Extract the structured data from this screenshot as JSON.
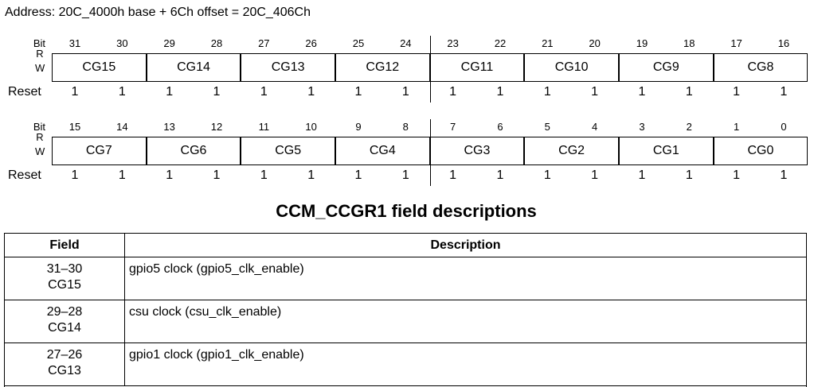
{
  "address": "Address: 20C_4000h base + 6Ch offset = 20C_406Ch",
  "registers": [
    {
      "bit_label": "Bit",
      "rw_labels": [
        "R",
        "W"
      ],
      "reset_label": "Reset",
      "bits": [
        31,
        30,
        29,
        28,
        27,
        26,
        25,
        24,
        23,
        22,
        21,
        20,
        19,
        18,
        17,
        16
      ],
      "fields": [
        "CG15",
        "CG14",
        "CG13",
        "CG12",
        "CG11",
        "CG10",
        "CG9",
        "CG8"
      ],
      "resets": [
        1,
        1,
        1,
        1,
        1,
        1,
        1,
        1,
        1,
        1,
        1,
        1,
        1,
        1,
        1,
        1
      ]
    },
    {
      "bit_label": "Bit",
      "rw_labels": [
        "R",
        "W"
      ],
      "reset_label": "Reset",
      "bits": [
        15,
        14,
        13,
        12,
        11,
        10,
        9,
        8,
        7,
        6,
        5,
        4,
        3,
        2,
        1,
        0
      ],
      "fields": [
        "CG7",
        "CG6",
        "CG5",
        "CG4",
        "CG3",
        "CG2",
        "CG1",
        "CG0"
      ],
      "resets": [
        1,
        1,
        1,
        1,
        1,
        1,
        1,
        1,
        1,
        1,
        1,
        1,
        1,
        1,
        1,
        1
      ]
    }
  ],
  "table_title": "CCM_CCGR1 field descriptions",
  "table": {
    "headers": [
      "Field",
      "Description"
    ],
    "rows": [
      {
        "bits": "31–30",
        "name": "CG15",
        "description": "gpio5 clock (gpio5_clk_enable)"
      },
      {
        "bits": "29–28",
        "name": "CG14",
        "description": "csu clock (csu_clk_enable)"
      },
      {
        "bits": "27–26",
        "name": "CG13",
        "description": "gpio1 clock (gpio1_clk_enable)"
      }
    ]
  }
}
